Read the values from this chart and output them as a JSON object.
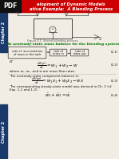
{
  "bg_color": "#f2ede4",
  "header_bg": "#cc0000",
  "sidebar_color": "#1a3a6b",
  "green_heading": "An unsteady-state mass balance for the blending system:",
  "figure_caption": "Figure 2.1  Stirred blending process.",
  "eq_label1": "(2-1)",
  "eq_label2": "(2-2)",
  "eq_label3": "(2-3)",
  "or_text": "or",
  "where_text": "where w₁, w₂, and w are mass flow rates.",
  "component_text": "The unsteady-state component balance is:",
  "steady_text": "The corresponding steady-state model was derived in Ch. 1 (cf.",
  "steady_text2": "Eqs. 1-1 and 1-2).",
  "eq2_partial": "(2-4)"
}
